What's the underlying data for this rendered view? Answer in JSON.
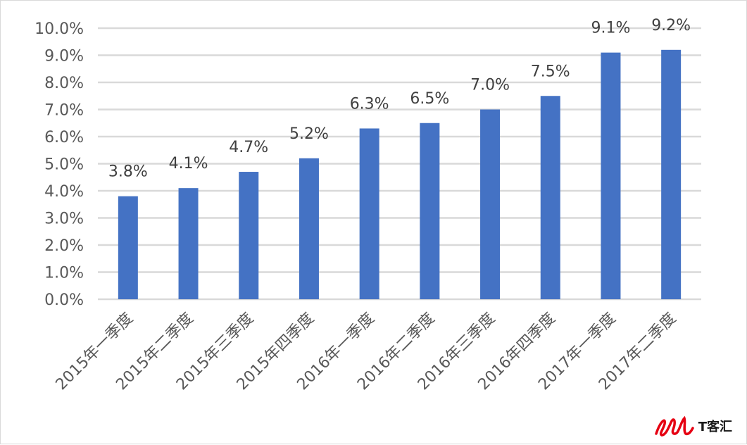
{
  "chart_data": {
    "type": "bar",
    "categories": [
      "2015年一季度",
      "2015年二季度",
      "2015年三季度",
      "2015年四季度",
      "2016年一季度",
      "2016年二季度",
      "2016年三季度",
      "2016年四季度",
      "2017年一季度",
      "2017年二季度"
    ],
    "values": [
      3.8,
      4.1,
      4.7,
      5.2,
      6.3,
      6.5,
      7.0,
      7.5,
      9.1,
      9.2
    ],
    "data_labels": [
      "3.8%",
      "4.1%",
      "4.7%",
      "5.2%",
      "6.3%",
      "6.5%",
      "7.0%",
      "7.5%",
      "9.1%",
      "9.2%"
    ],
    "y_ticks": [
      "0.0%",
      "1.0%",
      "2.0%",
      "3.0%",
      "4.0%",
      "5.0%",
      "6.0%",
      "7.0%",
      "8.0%",
      "9.0%",
      "10.0%"
    ],
    "ylim": [
      0,
      10
    ],
    "grid": true,
    "legend": "none",
    "bar_color": "#4472c4",
    "grid_color": "#d9d9d9"
  },
  "watermark": {
    "text": "T客汇",
    "logo_color": "#e60012"
  }
}
